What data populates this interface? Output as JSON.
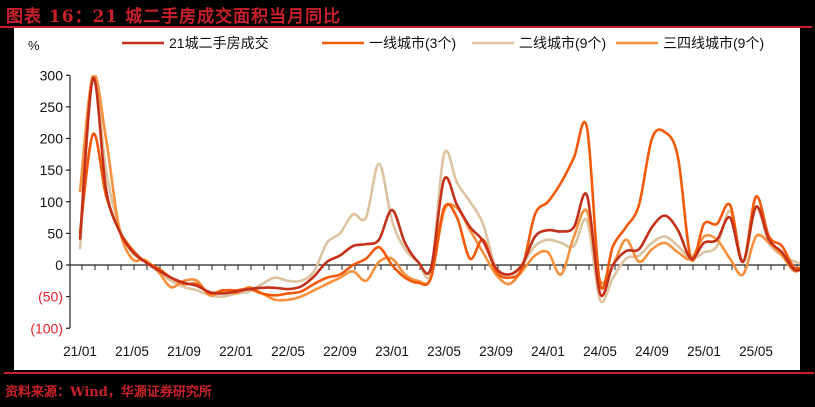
{
  "title": "图表 16：21 城二手房成交面积当月同比",
  "source": "资料来源：Wind，华源证券研究所",
  "chart_data": {
    "type": "line",
    "title": "图表 16：21 城二手房成交面积当月同比",
    "ylabel": "%",
    "xlabel": "",
    "ylim": [
      -100,
      300
    ],
    "yticks": [
      300,
      250,
      200,
      150,
      100,
      50,
      0,
      -50,
      -100
    ],
    "ytick_labels": [
      "300",
      "250",
      "200",
      "150",
      "100",
      "50",
      "0",
      "(50)",
      "(100)"
    ],
    "negative_label_color": "#E8202A",
    "x_tick_labels": [
      "21/01",
      "21/05",
      "21/09",
      "22/01",
      "22/05",
      "22/09",
      "23/01",
      "23/05",
      "23/09",
      "24/01",
      "24/05",
      "24/09",
      "25/01",
      "25/05"
    ],
    "x_start": "21/01",
    "x_end": "25/07",
    "grid": false,
    "legend_position": "top",
    "series": [
      {
        "name": "21城二手房成交",
        "color": "#C4311B",
        "values": [
          40,
          295,
          120,
          55,
          22,
          5,
          -8,
          -20,
          -28,
          -33,
          -43,
          -45,
          -42,
          -38,
          -36,
          -36,
          -38,
          -34,
          -18,
          5,
          15,
          30,
          33,
          40,
          87,
          35,
          5,
          -5,
          135,
          95,
          60,
          38,
          -5,
          -15,
          0,
          45,
          55,
          53,
          60,
          110,
          -45,
          0,
          22,
          25,
          60,
          78,
          55,
          10,
          35,
          40,
          75,
          5,
          92,
          40,
          20,
          -8,
          0
        ]
      },
      {
        "name": "一线城市(3个)",
        "color": "#F25A0A",
        "values": [
          50,
          207,
          110,
          55,
          25,
          5,
          -5,
          -20,
          -30,
          -30,
          -45,
          -40,
          -40,
          -38,
          -45,
          -48,
          -45,
          -42,
          -30,
          -20,
          -15,
          0,
          10,
          28,
          0,
          -20,
          -28,
          -20,
          90,
          75,
          10,
          40,
          -10,
          -20,
          -5,
          80,
          100,
          130,
          170,
          217,
          -30,
          30,
          60,
          95,
          200,
          210,
          170,
          10,
          65,
          65,
          95,
          5,
          108,
          45,
          30,
          -5,
          5
        ]
      },
      {
        "name": "二线城市(9个)",
        "color": "#DDC3A0",
        "values": [
          25,
          300,
          150,
          60,
          20,
          5,
          -10,
          -25,
          -35,
          -40,
          -48,
          -50,
          -45,
          -42,
          -30,
          -20,
          -25,
          -25,
          -10,
          35,
          50,
          80,
          75,
          160,
          70,
          25,
          5,
          -10,
          175,
          130,
          100,
          65,
          -5,
          -15,
          0,
          30,
          40,
          35,
          30,
          70,
          -55,
          -20,
          10,
          15,
          35,
          45,
          30,
          10,
          20,
          30,
          85,
          5,
          90,
          35,
          15,
          5,
          0
        ]
      },
      {
        "name": "三四线城市(9个)",
        "color": "#F7913D",
        "values": [
          115,
          300,
          200,
          60,
          10,
          8,
          -10,
          -35,
          -25,
          -25,
          -48,
          -40,
          -45,
          -35,
          -45,
          -55,
          -55,
          -50,
          -40,
          -30,
          -20,
          -10,
          -25,
          5,
          10,
          -15,
          -25,
          -20,
          85,
          90,
          55,
          20,
          -15,
          -30,
          -10,
          15,
          20,
          -15,
          45,
          85,
          -25,
          0,
          40,
          5,
          25,
          35,
          20,
          10,
          45,
          40,
          10,
          -15,
          45,
          35,
          15,
          -10,
          5
        ]
      }
    ]
  }
}
